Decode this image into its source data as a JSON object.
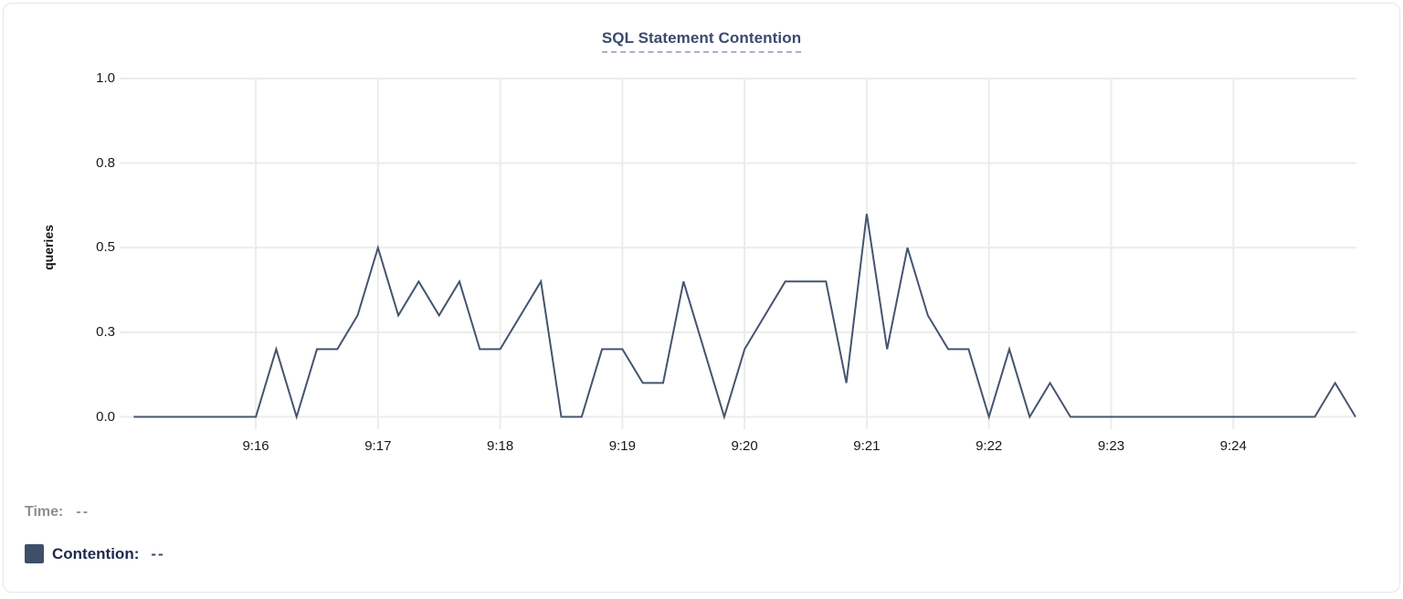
{
  "title": "SQL Statement Contention",
  "colors": {
    "line": "#45546f",
    "swatch": "#3f4e6a",
    "grid": "#ececec",
    "title_text": "#3a4a6f",
    "tick_text": "#17191f"
  },
  "legend": {
    "time_label": "Time:",
    "time_value": "--",
    "series_label": "Contention:",
    "series_value": "--"
  },
  "chart_data": {
    "type": "line",
    "title": "SQL Statement Contention",
    "xlabel": "",
    "ylabel": "queries",
    "ylim": [
      0,
      1.0
    ],
    "grid": true,
    "legend_position": "bottom-left",
    "x_start": "9:15:00",
    "x_end": "9:25:00",
    "interval_seconds": 10,
    "x_total_seconds": 600,
    "x_ticks": [
      {
        "label": "9:16",
        "t": 60
      },
      {
        "label": "9:17",
        "t": 120
      },
      {
        "label": "9:18",
        "t": 180
      },
      {
        "label": "9:19",
        "t": 240
      },
      {
        "label": "9:20",
        "t": 300
      },
      {
        "label": "9:21",
        "t": 360
      },
      {
        "label": "9:22",
        "t": 420
      },
      {
        "label": "9:23",
        "t": 480
      },
      {
        "label": "9:24",
        "t": 540
      }
    ],
    "y_ticks": [
      {
        "label": "1.0",
        "v": 1.0
      },
      {
        "label": "0.8",
        "v": 0.75
      },
      {
        "label": "0.5",
        "v": 0.5
      },
      {
        "label": "0.3",
        "v": 0.25
      },
      {
        "label": "0.0",
        "v": 0.0
      }
    ],
    "series": [
      {
        "name": "Contention",
        "unit": "queries",
        "color": "#45546f",
        "values": [
          0,
          0,
          0,
          0,
          0,
          0,
          0,
          0.2,
          0,
          0.2,
          0.2,
          0.3,
          0.5,
          0.3,
          0.4,
          0.3,
          0.4,
          0.2,
          0.2,
          0.3,
          0.4,
          0,
          0,
          0.2,
          0.2,
          0.1,
          0.1,
          0.4,
          0.2,
          0,
          0.2,
          0.3,
          0.4,
          0.4,
          0.4,
          0.1,
          0.6,
          0.2,
          0.5,
          0.3,
          0.2,
          0.2,
          0,
          0.2,
          0,
          0.1,
          0,
          0,
          0,
          0,
          0,
          0,
          0,
          0,
          0,
          0,
          0,
          0,
          0,
          0.1,
          0
        ]
      }
    ]
  }
}
